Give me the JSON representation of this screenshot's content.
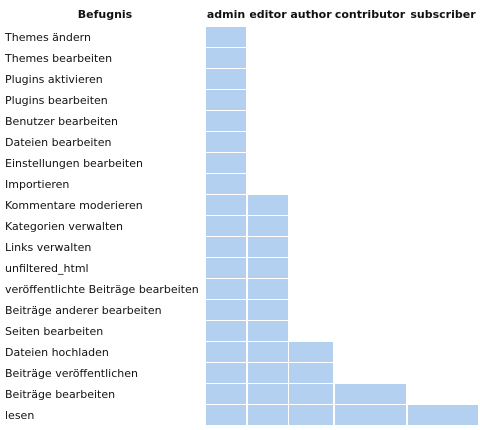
{
  "table": {
    "header": [
      "Befugnis",
      "admin",
      "editor",
      "author",
      "contributor",
      "subscriber"
    ],
    "rows": [
      {
        "label": "Themes ändern",
        "cells": [
          true,
          false,
          false,
          false,
          false
        ]
      },
      {
        "label": "Themes bearbeiten",
        "cells": [
          true,
          false,
          false,
          false,
          false
        ]
      },
      {
        "label": "Plugins aktivieren",
        "cells": [
          true,
          false,
          false,
          false,
          false
        ]
      },
      {
        "label": "Plugins bearbeiten",
        "cells": [
          true,
          false,
          false,
          false,
          false
        ]
      },
      {
        "label": "Benutzer bearbeiten",
        "cells": [
          true,
          false,
          false,
          false,
          false
        ]
      },
      {
        "label": "Dateien bearbeiten",
        "cells": [
          true,
          false,
          false,
          false,
          false
        ]
      },
      {
        "label": "Einstellungen bearbeiten",
        "cells": [
          true,
          false,
          false,
          false,
          false
        ]
      },
      {
        "label": "Importieren",
        "cells": [
          true,
          false,
          false,
          false,
          false
        ]
      },
      {
        "label": "Kommentare moderieren",
        "cells": [
          true,
          true,
          false,
          false,
          false
        ]
      },
      {
        "label": "Kategorien verwalten",
        "cells": [
          true,
          true,
          false,
          false,
          false
        ]
      },
      {
        "label": "Links verwalten",
        "cells": [
          true,
          true,
          false,
          false,
          false
        ]
      },
      {
        "label": "unfiltered_html",
        "cells": [
          true,
          true,
          false,
          false,
          false
        ]
      },
      {
        "label": "veröffentlichte Beiträge bearbeiten",
        "cells": [
          true,
          true,
          false,
          false,
          false
        ]
      },
      {
        "label": "Beiträge anderer bearbeiten",
        "cells": [
          true,
          true,
          false,
          false,
          false
        ]
      },
      {
        "label": "Seiten bearbeiten",
        "cells": [
          true,
          true,
          false,
          false,
          false
        ]
      },
      {
        "label": "Dateien hochladen",
        "cells": [
          true,
          true,
          true,
          false,
          false
        ]
      },
      {
        "label": "Beiträge veröffentlichen",
        "cells": [
          true,
          true,
          true,
          false,
          false
        ]
      },
      {
        "label": "Beiträge bearbeiten",
        "cells": [
          true,
          true,
          true,
          true,
          false
        ]
      },
      {
        "label": "lesen",
        "cells": [
          true,
          true,
          true,
          true,
          true
        ]
      }
    ],
    "fill": "#b3d0f0"
  }
}
